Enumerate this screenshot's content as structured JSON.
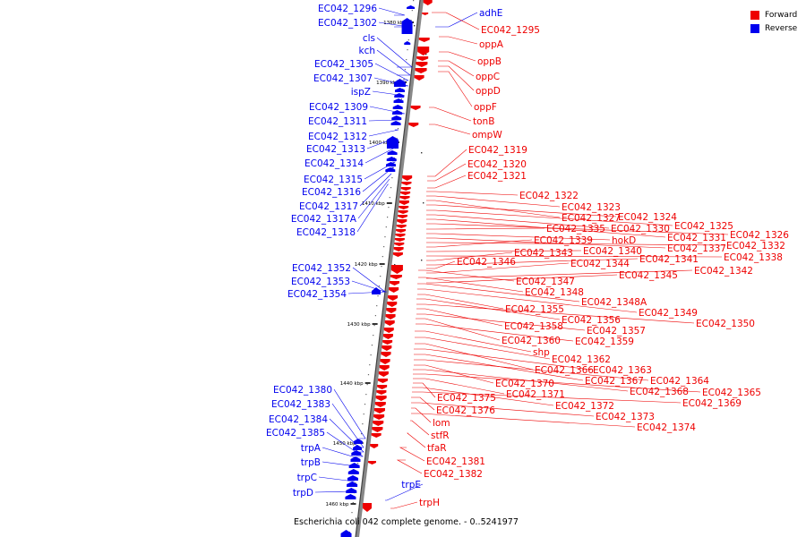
{
  "colors": {
    "forward": "#ee0000",
    "reverse": "#0000ee",
    "axis": "#888888"
  },
  "legend": {
    "forward_label": "Forward",
    "reverse_label": "Reverse"
  },
  "caption": "Escherichia coli 042 complete genome. - 0..5241977",
  "ticks": [
    "1380 kbp",
    "1390 kbp",
    "1400 kbp",
    "1410 kbp",
    "1420 kbp",
    "1430 kbp",
    "1440 kbp",
    "1450 kbp",
    "1460 kbp"
  ],
  "reverse_labels": [
    "EC042_1296",
    "EC042_1302",
    "cls",
    "kch",
    "EC042_1305",
    "EC042_1307",
    "ispZ",
    "EC042_1309",
    "EC042_1311",
    "EC042_1312",
    "EC042_1313",
    "EC042_1314",
    "EC042_1315",
    "EC042_1316",
    "EC042_1317",
    "EC042_1317A",
    "EC042_1318",
    "EC042_1352",
    "EC042_1353",
    "EC042_1354",
    "EC042_1380",
    "EC042_1383",
    "EC042_1384",
    "EC042_1385",
    "trpA",
    "trpB",
    "trpC",
    "trpD",
    "adhE",
    "trpE"
  ],
  "forward_labels": [
    "EC042_1295",
    "oppA",
    "oppB",
    "oppC",
    "oppD",
    "oppF",
    "tonB",
    "ompW",
    "EC042_1319",
    "EC042_1320",
    "EC042_1321",
    "EC042_1322",
    "EC042_1323",
    "EC042_1327",
    "EC042_1324",
    "EC042_1325",
    "EC042_1330",
    "EC042_1331",
    "EC042_1326",
    "EC042_1335",
    "hokD",
    "EC042_1337",
    "EC042_1332",
    "EC042_1339",
    "EC042_1340",
    "EC042_1338",
    "EC042_1343",
    "EC042_1341",
    "EC042_1346",
    "EC042_1344",
    "EC042_1342",
    "EC042_1345",
    "EC042_1347",
    "EC042_1348",
    "EC042_1348A",
    "EC042_1349",
    "EC042_1355",
    "EC042_1356",
    "EC042_1350",
    "EC042_1358",
    "EC042_1357",
    "EC042_1360",
    "EC042_1359",
    "shp",
    "EC042_1362",
    "EC042_1366",
    "EC042_1363",
    "EC042_1367",
    "EC042_1364",
    "EC042_1370",
    "EC042_1368",
    "EC042_1365",
    "EC042_1371",
    "EC042_1375",
    "EC042_1372",
    "EC042_1369",
    "EC042_1376",
    "EC042_1373",
    "lom",
    "EC042_1374",
    "stfR",
    "tfaR",
    "EC042_1381",
    "EC042_1382",
    "trpH"
  ]
}
